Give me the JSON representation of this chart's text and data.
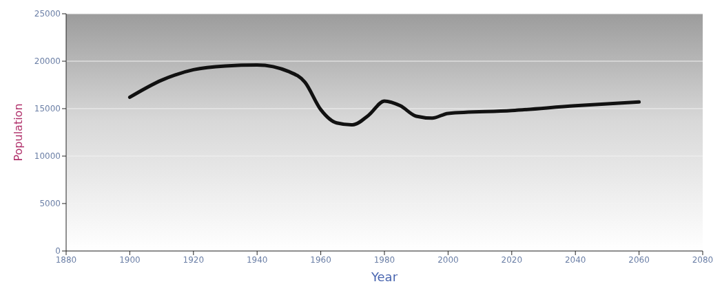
{
  "chart_data": {
    "type": "line",
    "xlabel": "Year",
    "ylabel": "Population",
    "x": [
      1900,
      1910,
      1920,
      1930,
      1940,
      1950,
      1955,
      1960,
      1965,
      1970,
      1975,
      1980,
      1985,
      1990,
      1995,
      2000,
      2020,
      2040,
      2060
    ],
    "series": [
      {
        "color": "#111111",
        "values": [
          16200,
          18000,
          19100,
          19500,
          19600,
          18900,
          17800,
          14900,
          13500,
          13300,
          14300,
          15800,
          15300,
          14200,
          14000,
          14500,
          14800,
          15300,
          15700
        ]
      }
    ],
    "xlim": [
      1880,
      2080
    ],
    "xticks": [
      1880,
      1900,
      1920,
      1940,
      1960,
      1980,
      2000,
      2020,
      2040,
      2060,
      2080
    ],
    "ylim": [
      0,
      25000
    ],
    "yticks": [
      0,
      5000,
      10000,
      15000,
      20000,
      25000
    ],
    "grid": "y",
    "marker": "none",
    "line_style": "solid"
  }
}
